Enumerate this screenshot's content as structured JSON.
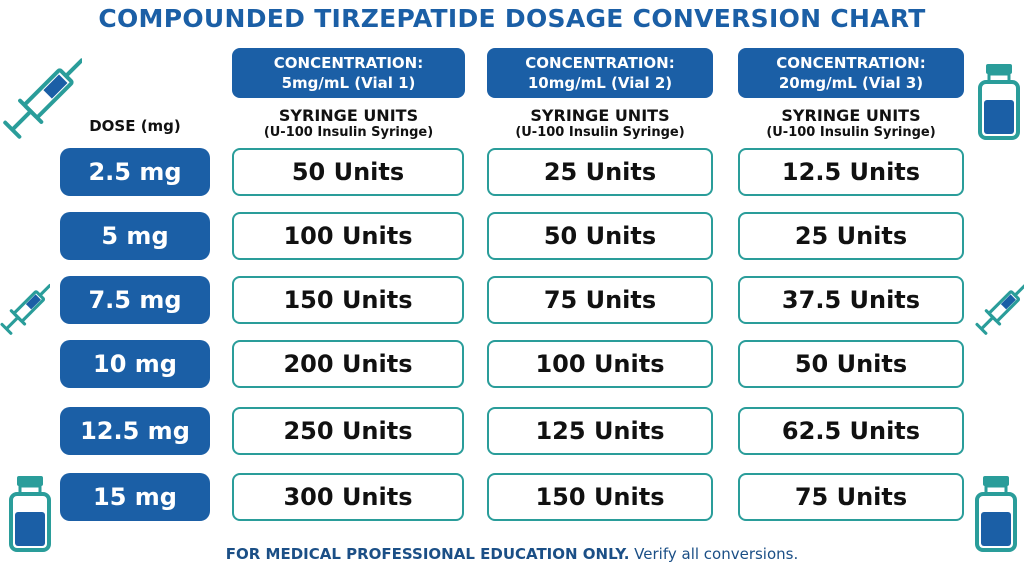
{
  "title": "COMPOUNDED TIRZEPATIDE DOSAGE CONVERSION CHART",
  "dose_header": "DOSE (mg)",
  "columns": [
    {
      "line1": "CONCENTRATION:",
      "line2": "5mg/mL (Vial 1)",
      "sub1": "SYRINGE UNITS",
      "sub2": "(U-100 Insulin Syringe)"
    },
    {
      "line1": "CONCENTRATION:",
      "line2": "10mg/mL (Vial 2)",
      "sub1": "SYRINGE UNITS",
      "sub2": "(U-100 Insulin Syringe)"
    },
    {
      "line1": "CONCENTRATION:",
      "line2": "20mg/mL (Vial 3)",
      "sub1": "SYRINGE UNITS",
      "sub2": "(U-100 Insulin Syringe)"
    }
  ],
  "rows": [
    {
      "dose": "2.5 mg",
      "cells": [
        "50 Units",
        "25 Units",
        "12.5 Units"
      ]
    },
    {
      "dose": "5 mg",
      "cells": [
        "100 Units",
        "50 Units",
        "25 Units"
      ]
    },
    {
      "dose": "7.5 mg",
      "cells": [
        "150 Units",
        "75 Units",
        "37.5 Units"
      ]
    },
    {
      "dose": "10 mg",
      "cells": [
        "200 Units",
        "100 Units",
        "50 Units"
      ]
    },
    {
      "dose": "12.5 mg",
      "cells": [
        "250 Units",
        "125 Units",
        "62.5 Units"
      ]
    },
    {
      "dose": "15 mg",
      "cells": [
        "300 Units",
        "150 Units",
        "75 Units"
      ]
    }
  ],
  "footer": {
    "bold": "FOR MEDICAL PROFESSIONAL EDUCATION ONLY.",
    "normal": " Verify all conversions."
  },
  "colors": {
    "primary": "#1b5fa6",
    "teal": "#2a9d9a"
  },
  "icons": [
    "syringe-icon",
    "vial-icon"
  ]
}
